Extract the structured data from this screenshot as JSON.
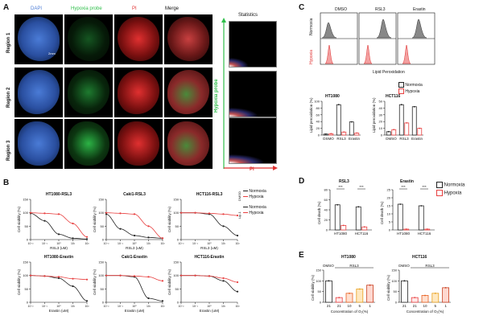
{
  "panels": {
    "A": "A",
    "B": "B",
    "C": "C",
    "D": "D",
    "E": "E"
  },
  "colors": {
    "dapi": "#4a7bd6",
    "hypoxia": "#2fbf4a",
    "pi": "#e03030",
    "normoxia": "#222222",
    "hypoxia_series": "#e84040"
  },
  "panel_a": {
    "columns": [
      "DAPI",
      "Hypoxia probe",
      "PI",
      "Merge",
      "Statistics"
    ],
    "rows": [
      "Region 1",
      "Region 2",
      "Region 3"
    ],
    "scale_bar": "2mm",
    "stats_ylabel": "Hypoxia probe",
    "stats_xlabel": "PI"
  },
  "panel_b": {
    "legend": {
      "normoxia": "Normoxia",
      "hypoxia": "Hypoxia"
    },
    "side_labels": {
      "dmso": "DMSO",
      "lip1": "Lip-1"
    },
    "ylabel": "Cell viability (%)",
    "charts": [
      {
        "title": "HT1080-RSL3",
        "xlabel": "RSL3 (uM)"
      },
      {
        "title": "Caki1-RSL3",
        "xlabel": "RSL3 (uM)"
      },
      {
        "title": "HCT116-RSL3",
        "xlabel": "RSL3 (uM)"
      },
      {
        "title": "HT1080-Erastin",
        "xlabel": "Erastin (uM)"
      },
      {
        "title": "Caki1-Erastin",
        "xlabel": "Erastin (uM)"
      },
      {
        "title": "HCT116-Erastin",
        "xlabel": "Erastin (uM)"
      }
    ],
    "yticks": [
      "150",
      "100",
      "50",
      "0"
    ],
    "xticks": [
      "10⁻²",
      "10⁻¹",
      "10⁰",
      "10¹",
      "10²"
    ]
  },
  "panel_c": {
    "columns": [
      "DMSO",
      "RSL3",
      "Erastin"
    ],
    "rows": [
      "Normoxia",
      "Hypoxia"
    ],
    "xlabel": "Lipid Peroxidation",
    "legend": {
      "normoxia": "Normoxia",
      "hypoxia": "Hypoxia"
    },
    "ylabel": "Lipid peroxidation (%)",
    "bars": [
      {
        "title": "HT1080",
        "categories": [
          "DSMO",
          "RSL3",
          "Erastin"
        ],
        "yticks": [
          "100",
          "80",
          "60",
          "40",
          "20",
          "0"
        ]
      },
      {
        "title": "HCT116",
        "categories": [
          "DMSO",
          "RSL3",
          "Erastin"
        ],
        "yticks": [
          "50",
          "40",
          "30",
          "20",
          "10",
          "0"
        ]
      }
    ]
  },
  "panel_d": {
    "legend": {
      "normoxia": "Normoxia",
      "hypoxia": "Hypoxia"
    },
    "ylabel": "Cell death (%)",
    "charts": [
      {
        "title": "RSL3",
        "categories": [
          "HT1080",
          "HCT116"
        ],
        "yticks": [
          "80",
          "60",
          "40",
          "20",
          "0"
        ],
        "sig": "***"
      },
      {
        "title": "Erastin",
        "categories": [
          "HT1080",
          "HCT116"
        ],
        "yticks": [
          "25",
          "20",
          "15",
          "10",
          "5",
          "0"
        ],
        "sig": "***"
      }
    ]
  },
  "panel_e": {
    "ylabel": "Cell viability (%)",
    "xlabel": "Concentration of O₂(%)",
    "group_dmso": "DMSO",
    "group_rsl3": "RSL3",
    "charts": [
      {
        "title": "HT1080",
        "categories": [
          "21",
          "21",
          "10",
          "5",
          "1"
        ],
        "yticks": [
          "150",
          "100",
          "50",
          "0"
        ]
      },
      {
        "title": "HCT116",
        "categories": [
          "21",
          "21",
          "10",
          "5",
          "1"
        ],
        "yticks": [
          "150",
          "100",
          "50",
          "0"
        ]
      }
    ]
  },
  "chart_data": [
    {
      "type": "bar",
      "title": "HT1080",
      "categories": [
        "DSMO",
        "RSL3",
        "Erastin"
      ],
      "ylabel": "Lipid peroxidation (%)",
      "ylim": [
        0,
        100
      ],
      "series": [
        {
          "name": "Normoxia",
          "values": [
            3,
            90,
            39
          ]
        },
        {
          "name": "Hypoxia",
          "values": [
            4,
            9,
            6
          ]
        }
      ]
    },
    {
      "type": "bar",
      "title": "HCT116",
      "categories": [
        "DMSO",
        "RSL3",
        "Erastin"
      ],
      "ylabel": "Lipid peroxidation (%)",
      "ylim": [
        0,
        50
      ],
      "series": [
        {
          "name": "Normoxia",
          "values": [
            5,
            45,
            42
          ]
        },
        {
          "name": "Hypoxia",
          "values": [
            8,
            18,
            10
          ]
        }
      ]
    },
    {
      "type": "bar",
      "title": "RSL3",
      "categories": [
        "HT1080",
        "HCT116"
      ],
      "ylabel": "Cell death (%)",
      "ylim": [
        0,
        80
      ],
      "series": [
        {
          "name": "Normoxia",
          "values": [
            50,
            46
          ]
        },
        {
          "name": "Hypoxia",
          "values": [
            9,
            6
          ]
        }
      ]
    },
    {
      "type": "bar",
      "title": "Erastin",
      "categories": [
        "HT1080",
        "HCT116"
      ],
      "ylabel": "Cell death (%)",
      "ylim": [
        0,
        25
      ],
      "series": [
        {
          "name": "Normoxia",
          "values": [
            16,
            15
          ]
        },
        {
          "name": "Hypoxia",
          "values": [
            0.5,
            0.5
          ]
        }
      ]
    },
    {
      "type": "bar",
      "title": "HT1080",
      "categories": [
        "21",
        "21",
        "10",
        "5",
        "1"
      ],
      "xlabel": "Concentration of O₂(%)",
      "ylabel": "Cell viability (%)",
      "ylim": [
        0,
        150
      ],
      "series": [
        {
          "values": [
            100,
            22,
            42,
            62,
            80
          ]
        }
      ]
    },
    {
      "type": "bar",
      "title": "HCT116",
      "categories": [
        "21",
        "21",
        "10",
        "5",
        "1"
      ],
      "xlabel": "Concentration of O₂(%)",
      "ylabel": "Cell viability (%)",
      "ylim": [
        0,
        150
      ],
      "series": [
        {
          "values": [
            100,
            22,
            32,
            42,
            68
          ]
        }
      ]
    },
    {
      "type": "line",
      "title": "HT1080-RSL3",
      "x": [
        0.01,
        0.1,
        1,
        10,
        100
      ],
      "xlabel": "RSL3 (uM)",
      "ylabel": "Cell viability (%)",
      "ylim": [
        0,
        150
      ],
      "series": [
        {
          "name": "Normoxia",
          "values": [
            98,
            70,
            20,
            5,
            2
          ]
        },
        {
          "name": "Hypoxia",
          "values": [
            100,
            98,
            95,
            60,
            10
          ]
        }
      ]
    },
    {
      "type": "line",
      "title": "Caki1-RSL3",
      "x": [
        0.01,
        0.1,
        1,
        10,
        100
      ],
      "xlabel": "RSL3 (uM)",
      "ylabel": "Cell viability (%)",
      "ylim": [
        0,
        150
      ],
      "series": [
        {
          "name": "Normoxia",
          "values": [
            95,
            40,
            15,
            8,
            5
          ]
        },
        {
          "name": "Hypoxia",
          "values": [
            100,
            98,
            95,
            50,
            5
          ]
        }
      ]
    },
    {
      "type": "line",
      "title": "HCT116-RSL3",
      "x": [
        0.01,
        0.1,
        1,
        10,
        100
      ],
      "xlabel": "RSL3 (uM)",
      "ylabel": "Cell viability (%)",
      "ylim": [
        0,
        150
      ],
      "series": [
        {
          "name": "Normoxia",
          "values": [
            100,
            100,
            95,
            50,
            15
          ]
        },
        {
          "name": "Hypoxia",
          "values": [
            100,
            100,
            98,
            95,
            90
          ]
        }
      ]
    },
    {
      "type": "line",
      "title": "HT1080-Erastin",
      "x": [
        0.01,
        0.1,
        1,
        10,
        100
      ],
      "xlabel": "Erastin (uM)",
      "ylabel": "Cell viability (%)",
      "ylim": [
        0,
        150
      ],
      "series": [
        {
          "name": "Normoxia",
          "values": [
            100,
            98,
            90,
            60,
            5
          ]
        },
        {
          "name": "Hypoxia",
          "values": [
            100,
            98,
            95,
            88,
            85
          ]
        }
      ]
    },
    {
      "type": "line",
      "title": "Caki1-Erastin",
      "x": [
        0.01,
        0.1,
        1,
        10,
        100
      ],
      "xlabel": "Erastin (uM)",
      "ylabel": "Cell viability (%)",
      "ylim": [
        0,
        150
      ],
      "series": [
        {
          "name": "Normoxia",
          "values": [
            100,
            100,
            95,
            15,
            5
          ]
        },
        {
          "name": "Hypoxia",
          "values": [
            100,
            100,
            98,
            95,
            80
          ]
        }
      ]
    },
    {
      "type": "line",
      "title": "HCT116-Erastin",
      "x": [
        0.01,
        0.1,
        1,
        10,
        100
      ],
      "xlabel": "Erastin (uM)",
      "ylabel": "Cell viability (%)",
      "ylim": [
        0,
        150
      ],
      "series": [
        {
          "name": "Normoxia",
          "values": [
            100,
            100,
            98,
            80,
            40
          ]
        },
        {
          "name": "Hypoxia",
          "values": [
            100,
            100,
            98,
            90,
            75
          ]
        }
      ]
    }
  ]
}
